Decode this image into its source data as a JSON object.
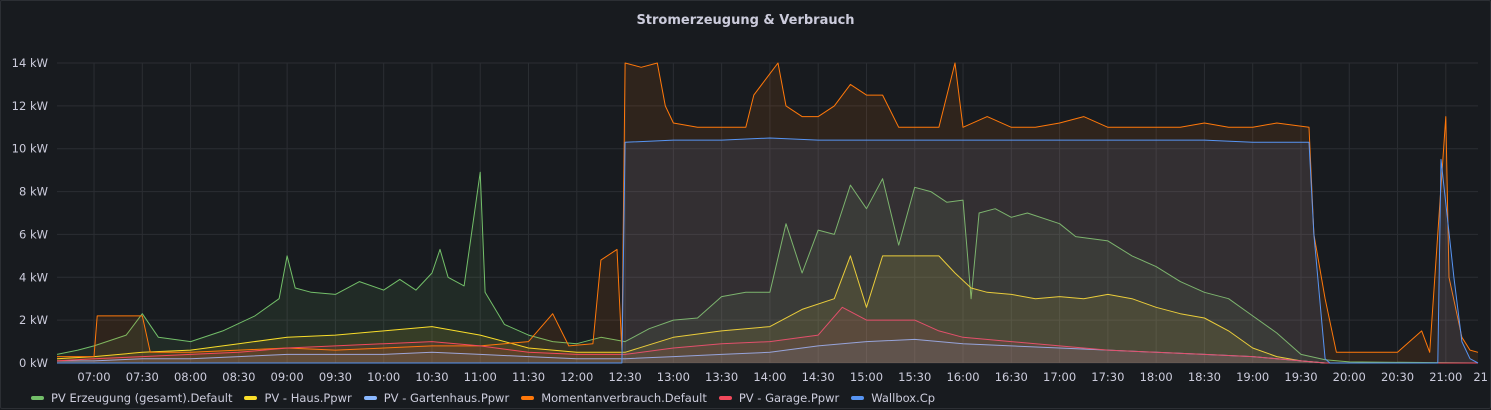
{
  "panel": {
    "title": "Stromerzeugung & Verbrauch"
  },
  "chart_data": {
    "type": "area",
    "title": "Stromerzeugung & Verbrauch",
    "xlabel": "",
    "ylabel": "",
    "y_unit": "kW",
    "ylim": [
      0,
      14
    ],
    "y_ticks": [
      "0 kW",
      "2 kW",
      "4 kW",
      "6 kW",
      "8 kW",
      "10 kW",
      "12 kW",
      "14 kW"
    ],
    "x_ticks": [
      "07:00",
      "07:30",
      "08:00",
      "08:30",
      "09:00",
      "09:30",
      "10:00",
      "10:30",
      "11:00",
      "11:30",
      "12:00",
      "12:30",
      "13:00",
      "13:30",
      "14:00",
      "14:30",
      "15:00",
      "15:30",
      "16:00",
      "16:30",
      "17:00",
      "17:30",
      "18:00",
      "18:30",
      "19:00",
      "19:30",
      "20:00",
      "20:30",
      "21:00",
      "21"
    ],
    "x_range": [
      "06:37",
      "21:20"
    ],
    "grid": true,
    "legend_position": "bottom-left",
    "series": [
      {
        "name": "PV Erzeugung (gesamt).Default",
        "color": "#73bf69",
        "points": [
          [
            "06:37",
            0.4
          ],
          [
            "06:50",
            0.6
          ],
          [
            "07:00",
            0.8
          ],
          [
            "07:20",
            1.3
          ],
          [
            "07:30",
            2.3
          ],
          [
            "07:40",
            1.2
          ],
          [
            "08:00",
            1.0
          ],
          [
            "08:20",
            1.5
          ],
          [
            "08:40",
            2.2
          ],
          [
            "08:55",
            3.0
          ],
          [
            "09:00",
            5.0
          ],
          [
            "09:05",
            3.5
          ],
          [
            "09:15",
            3.3
          ],
          [
            "09:30",
            3.2
          ],
          [
            "09:45",
            3.8
          ],
          [
            "10:00",
            3.4
          ],
          [
            "10:10",
            3.9
          ],
          [
            "10:20",
            3.4
          ],
          [
            "10:30",
            4.2
          ],
          [
            "10:35",
            5.3
          ],
          [
            "10:40",
            4.0
          ],
          [
            "10:50",
            3.6
          ],
          [
            "11:00",
            8.9
          ],
          [
            "11:03",
            3.3
          ],
          [
            "11:15",
            1.8
          ],
          [
            "11:30",
            1.3
          ],
          [
            "11:45",
            1.0
          ],
          [
            "12:00",
            0.9
          ],
          [
            "12:15",
            1.2
          ],
          [
            "12:30",
            1.0
          ],
          [
            "12:45",
            1.6
          ],
          [
            "13:00",
            2.0
          ],
          [
            "13:15",
            2.1
          ],
          [
            "13:30",
            3.1
          ],
          [
            "13:45",
            3.3
          ],
          [
            "14:00",
            3.3
          ],
          [
            "14:10",
            6.5
          ],
          [
            "14:20",
            4.2
          ],
          [
            "14:30",
            6.2
          ],
          [
            "14:40",
            6.0
          ],
          [
            "14:50",
            8.3
          ],
          [
            "15:00",
            7.2
          ],
          [
            "15:10",
            8.6
          ],
          [
            "15:20",
            5.5
          ],
          [
            "15:30",
            8.2
          ],
          [
            "15:40",
            8.0
          ],
          [
            "15:50",
            7.5
          ],
          [
            "16:00",
            7.6
          ],
          [
            "16:05",
            3.0
          ],
          [
            "16:10",
            7.0
          ],
          [
            "16:20",
            7.2
          ],
          [
            "16:30",
            6.8
          ],
          [
            "16:40",
            7.0
          ],
          [
            "17:00",
            6.5
          ],
          [
            "17:10",
            5.9
          ],
          [
            "17:30",
            5.7
          ],
          [
            "17:45",
            5.0
          ],
          [
            "18:00",
            4.5
          ],
          [
            "18:15",
            3.8
          ],
          [
            "18:30",
            3.3
          ],
          [
            "18:45",
            3.0
          ],
          [
            "19:00",
            2.2
          ],
          [
            "19:15",
            1.4
          ],
          [
            "19:30",
            0.4
          ],
          [
            "19:45",
            0.15
          ],
          [
            "20:00",
            0.05
          ],
          [
            "21:20",
            0.0
          ]
        ]
      },
      {
        "name": "PV - Haus.Ppwr",
        "color": "#fade2a",
        "points": [
          [
            "06:37",
            0.2
          ],
          [
            "07:00",
            0.3
          ],
          [
            "07:30",
            0.5
          ],
          [
            "08:00",
            0.6
          ],
          [
            "08:30",
            0.9
          ],
          [
            "09:00",
            1.2
          ],
          [
            "09:30",
            1.3
          ],
          [
            "10:00",
            1.5
          ],
          [
            "10:30",
            1.7
          ],
          [
            "11:00",
            1.3
          ],
          [
            "11:30",
            0.7
          ],
          [
            "12:00",
            0.5
          ],
          [
            "12:30",
            0.5
          ],
          [
            "13:00",
            1.2
          ],
          [
            "13:30",
            1.5
          ],
          [
            "14:00",
            1.7
          ],
          [
            "14:20",
            2.5
          ],
          [
            "14:40",
            3.0
          ],
          [
            "14:50",
            5.0
          ],
          [
            "15:00",
            2.6
          ],
          [
            "15:10",
            5.0
          ],
          [
            "15:30",
            5.0
          ],
          [
            "15:45",
            5.0
          ],
          [
            "15:55",
            4.2
          ],
          [
            "16:05",
            3.5
          ],
          [
            "16:15",
            3.3
          ],
          [
            "16:30",
            3.2
          ],
          [
            "16:45",
            3.0
          ],
          [
            "17:00",
            3.1
          ],
          [
            "17:15",
            3.0
          ],
          [
            "17:30",
            3.2
          ],
          [
            "17:45",
            3.0
          ],
          [
            "18:00",
            2.6
          ],
          [
            "18:15",
            2.3
          ],
          [
            "18:30",
            2.1
          ],
          [
            "18:45",
            1.5
          ],
          [
            "19:00",
            0.7
          ],
          [
            "19:15",
            0.3
          ],
          [
            "19:30",
            0.1
          ],
          [
            "19:45",
            0.0
          ],
          [
            "21:20",
            0.0
          ]
        ]
      },
      {
        "name": "PV - Gartenhaus.Ppwr",
        "color": "#8ab8ff",
        "points": [
          [
            "06:37",
            0.1
          ],
          [
            "07:00",
            0.1
          ],
          [
            "07:30",
            0.2
          ],
          [
            "08:00",
            0.2
          ],
          [
            "08:30",
            0.3
          ],
          [
            "09:00",
            0.4
          ],
          [
            "09:30",
            0.4
          ],
          [
            "10:00",
            0.4
          ],
          [
            "10:30",
            0.5
          ],
          [
            "11:00",
            0.4
          ],
          [
            "11:30",
            0.3
          ],
          [
            "12:00",
            0.2
          ],
          [
            "12:30",
            0.2
          ],
          [
            "13:00",
            0.3
          ],
          [
            "13:30",
            0.4
          ],
          [
            "14:00",
            0.5
          ],
          [
            "14:30",
            0.8
          ],
          [
            "15:00",
            1.0
          ],
          [
            "15:30",
            1.1
          ],
          [
            "16:00",
            0.9
          ],
          [
            "16:30",
            0.8
          ],
          [
            "17:00",
            0.7
          ],
          [
            "17:30",
            0.6
          ],
          [
            "18:00",
            0.5
          ],
          [
            "18:30",
            0.4
          ],
          [
            "19:00",
            0.3
          ],
          [
            "19:30",
            0.1
          ],
          [
            "19:45",
            0.0
          ],
          [
            "21:20",
            0.0
          ]
        ]
      },
      {
        "name": "Momentanverbrauch.Default",
        "color": "#ff780a",
        "points": [
          [
            "06:37",
            0.3
          ],
          [
            "07:00",
            0.3
          ],
          [
            "07:02",
            2.2
          ],
          [
            "07:30",
            2.2
          ],
          [
            "07:35",
            0.5
          ],
          [
            "08:00",
            0.5
          ],
          [
            "08:30",
            0.6
          ],
          [
            "09:00",
            0.7
          ],
          [
            "09:30",
            0.6
          ],
          [
            "10:00",
            0.7
          ],
          [
            "10:30",
            0.8
          ],
          [
            "11:00",
            0.8
          ],
          [
            "11:30",
            1.0
          ],
          [
            "11:45",
            2.3
          ],
          [
            "11:55",
            0.8
          ],
          [
            "12:10",
            0.9
          ],
          [
            "12:15",
            4.8
          ],
          [
            "12:25",
            5.3
          ],
          [
            "12:28",
            0.6
          ],
          [
            "12:30",
            14.0
          ],
          [
            "12:40",
            13.8
          ],
          [
            "12:50",
            14.0
          ],
          [
            "12:55",
            12.0
          ],
          [
            "13:00",
            11.2
          ],
          [
            "13:15",
            11.0
          ],
          [
            "13:30",
            11.0
          ],
          [
            "13:45",
            11.0
          ],
          [
            "13:50",
            12.5
          ],
          [
            "14:00",
            13.5
          ],
          [
            "14:05",
            14.0
          ],
          [
            "14:10",
            12.0
          ],
          [
            "14:20",
            11.5
          ],
          [
            "14:30",
            11.5
          ],
          [
            "14:40",
            12.0
          ],
          [
            "14:50",
            13.0
          ],
          [
            "15:00",
            12.5
          ],
          [
            "15:10",
            12.5
          ],
          [
            "15:20",
            11.0
          ],
          [
            "15:30",
            11.0
          ],
          [
            "15:45",
            11.0
          ],
          [
            "15:55",
            14.0
          ],
          [
            "16:00",
            11.0
          ],
          [
            "16:15",
            11.5
          ],
          [
            "16:30",
            11.0
          ],
          [
            "16:45",
            11.0
          ],
          [
            "17:00",
            11.2
          ],
          [
            "17:15",
            11.5
          ],
          [
            "17:30",
            11.0
          ],
          [
            "17:45",
            11.0
          ],
          [
            "18:00",
            11.0
          ],
          [
            "18:15",
            11.0
          ],
          [
            "18:30",
            11.2
          ],
          [
            "18:45",
            11.0
          ],
          [
            "19:00",
            11.0
          ],
          [
            "19:15",
            11.2
          ],
          [
            "19:35",
            11.0
          ],
          [
            "19:38",
            6.0
          ],
          [
            "19:45",
            3.0
          ],
          [
            "19:52",
            0.5
          ],
          [
            "20:00",
            0.5
          ],
          [
            "20:30",
            0.5
          ],
          [
            "20:45",
            1.5
          ],
          [
            "20:50",
            0.5
          ],
          [
            "21:00",
            11.5
          ],
          [
            "21:02",
            4.0
          ],
          [
            "21:10",
            1.2
          ],
          [
            "21:15",
            0.6
          ],
          [
            "21:20",
            0.5
          ]
        ]
      },
      {
        "name": "PV - Garage.Ppwr",
        "color": "#f2495c",
        "points": [
          [
            "06:37",
            0.1
          ],
          [
            "07:00",
            0.2
          ],
          [
            "07:30",
            0.3
          ],
          [
            "08:00",
            0.4
          ],
          [
            "08:30",
            0.5
          ],
          [
            "09:00",
            0.7
          ],
          [
            "09:30",
            0.8
          ],
          [
            "10:00",
            0.9
          ],
          [
            "10:30",
            1.0
          ],
          [
            "11:00",
            0.8
          ],
          [
            "11:30",
            0.5
          ],
          [
            "12:00",
            0.4
          ],
          [
            "12:30",
            0.4
          ],
          [
            "13:00",
            0.7
          ],
          [
            "13:30",
            0.9
          ],
          [
            "14:00",
            1.0
          ],
          [
            "14:30",
            1.3
          ],
          [
            "14:45",
            2.6
          ],
          [
            "15:00",
            2.0
          ],
          [
            "15:30",
            2.0
          ],
          [
            "15:45",
            1.5
          ],
          [
            "16:00",
            1.2
          ],
          [
            "16:30",
            1.0
          ],
          [
            "17:00",
            0.8
          ],
          [
            "17:30",
            0.6
          ],
          [
            "18:00",
            0.5
          ],
          [
            "18:30",
            0.4
          ],
          [
            "19:00",
            0.3
          ],
          [
            "19:30",
            0.1
          ],
          [
            "19:45",
            0.0
          ],
          [
            "21:20",
            0.0
          ]
        ]
      },
      {
        "name": "Wallbox.Cp",
        "color": "#5794f2",
        "points": [
          [
            "06:37",
            0.0
          ],
          [
            "12:28",
            0.0
          ],
          [
            "12:30",
            10.3
          ],
          [
            "13:00",
            10.4
          ],
          [
            "13:30",
            10.4
          ],
          [
            "14:00",
            10.5
          ],
          [
            "14:30",
            10.4
          ],
          [
            "15:00",
            10.4
          ],
          [
            "15:30",
            10.4
          ],
          [
            "16:00",
            10.4
          ],
          [
            "16:30",
            10.4
          ],
          [
            "17:00",
            10.4
          ],
          [
            "17:30",
            10.4
          ],
          [
            "18:00",
            10.4
          ],
          [
            "18:30",
            10.4
          ],
          [
            "19:00",
            10.3
          ],
          [
            "19:35",
            10.3
          ],
          [
            "19:38",
            6.0
          ],
          [
            "19:45",
            0.2
          ],
          [
            "19:48",
            0.0
          ],
          [
            "20:55",
            0.0
          ],
          [
            "20:57",
            9.5
          ],
          [
            "21:05",
            4.0
          ],
          [
            "21:10",
            1.0
          ],
          [
            "21:15",
            0.2
          ],
          [
            "21:20",
            0.0
          ]
        ]
      }
    ]
  }
}
